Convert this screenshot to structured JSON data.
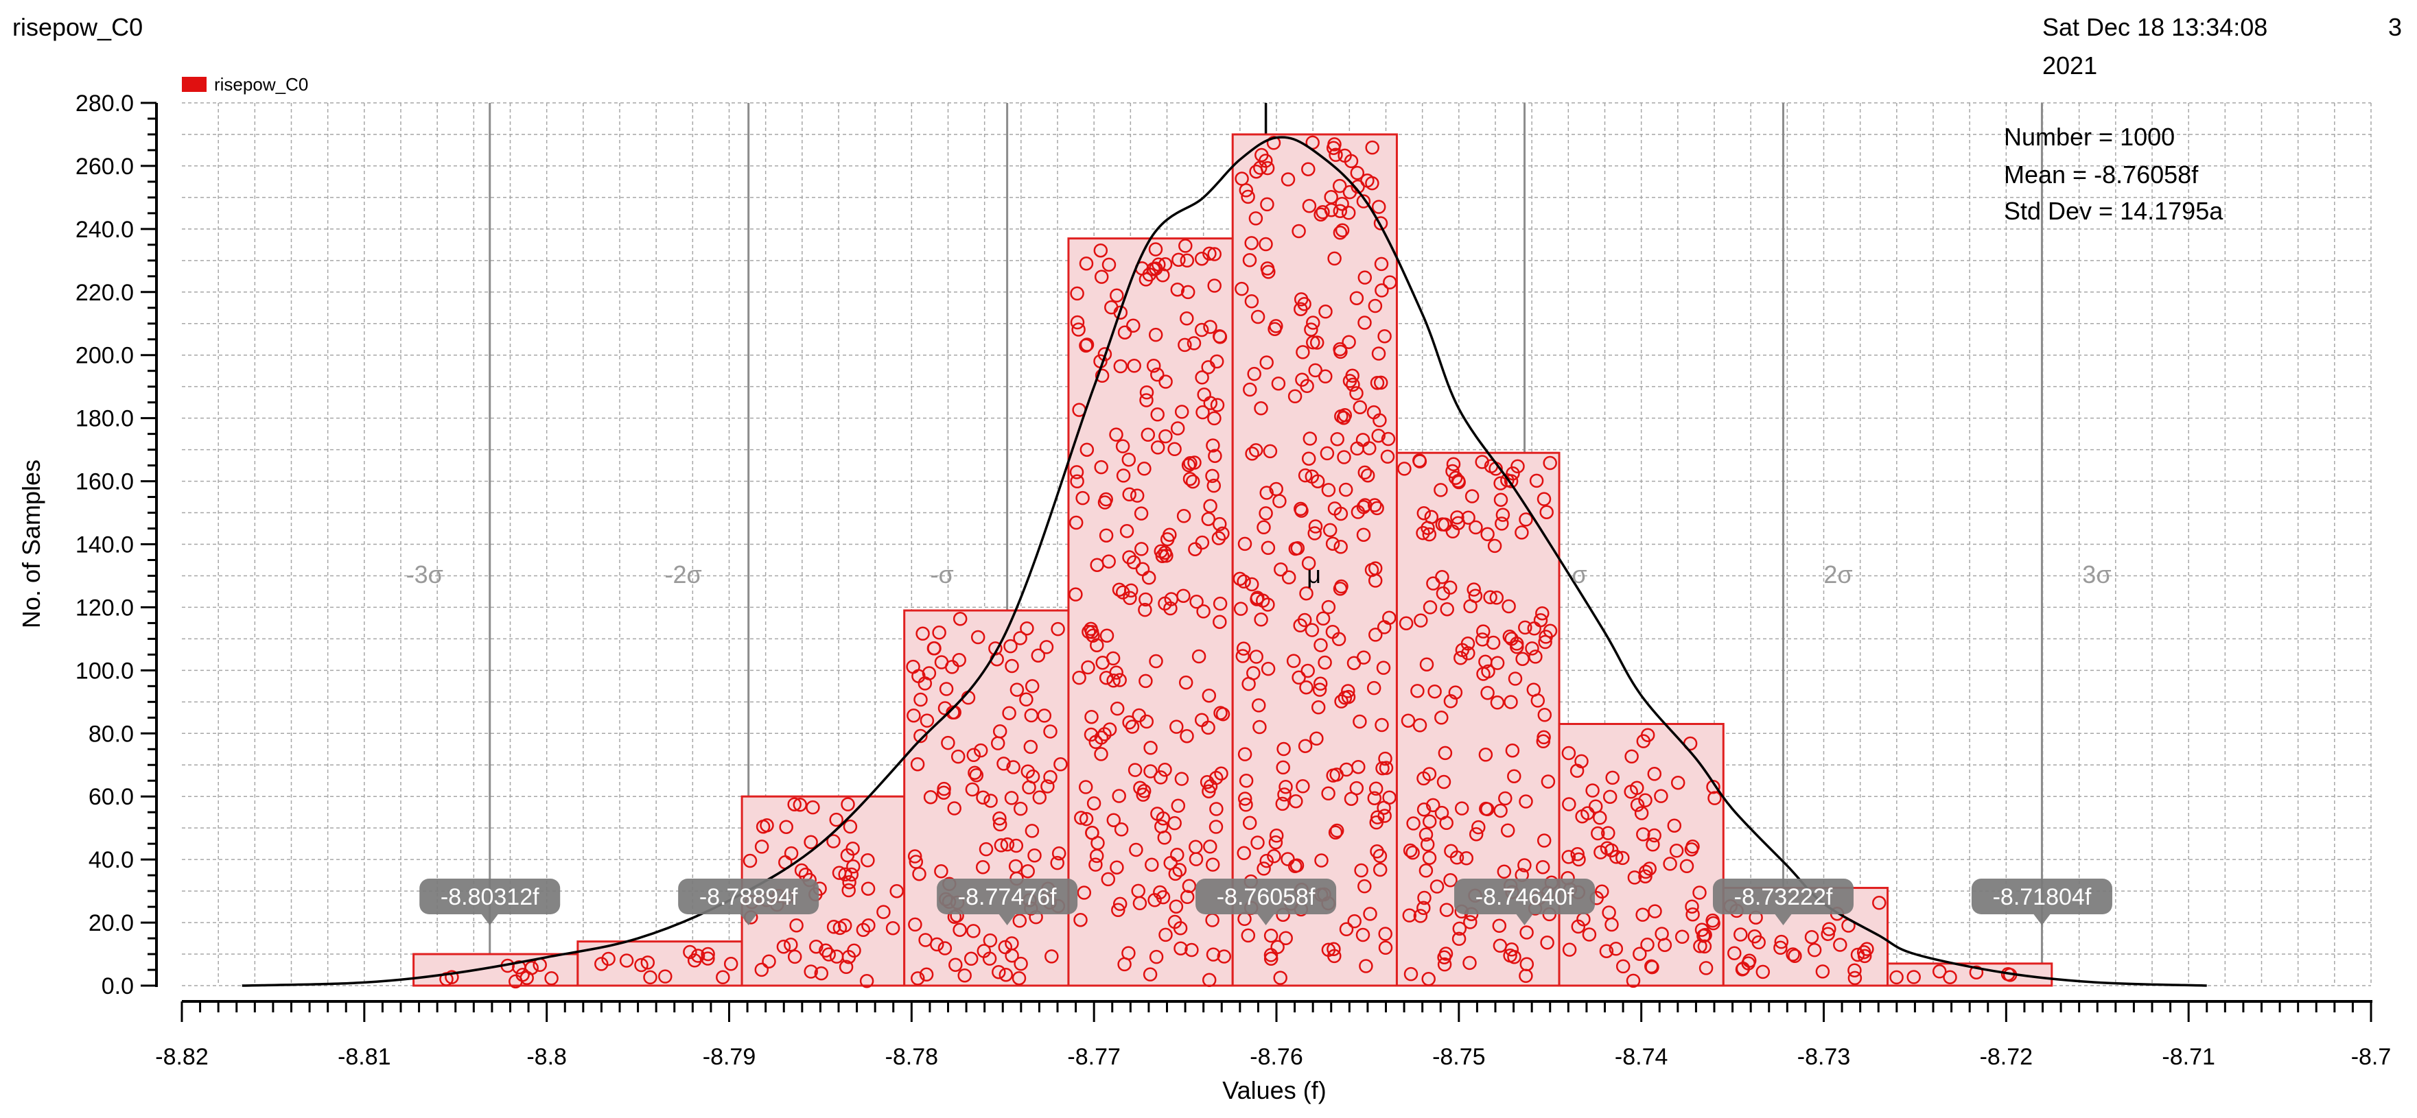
{
  "header": {
    "title": "risepow_C0",
    "date_line1": "Sat Dec 18 13:34:08",
    "date_line2": "2021",
    "page_number": "3"
  },
  "stats": {
    "number": "Number = 1000",
    "mean": "Mean = -8.76058f",
    "std_dev": "Std Dev = 14.1795a"
  },
  "colors": {
    "bar_fill": "#f7d7d9",
    "bar_edge": "#e02020",
    "marker": "#e01010",
    "curve": "#000000",
    "sigma_line": "#8c8c8c",
    "callout": "#7a7a7a",
    "grid": "#a6a6a6"
  },
  "chart_data": {
    "type": "bar",
    "title": "",
    "xlabel": "Values (f)",
    "ylabel": "No. of Samples",
    "legend": {
      "entries": [
        "risepow_C0"
      ],
      "placement": "top-left"
    },
    "xlim": [
      -8.82,
      -8.7
    ],
    "ylim": [
      0,
      280
    ],
    "grid": true,
    "x_ticks": [
      "-8.82",
      "-8.81",
      "-8.8",
      "-8.79",
      "-8.78",
      "-8.77",
      "-8.76",
      "-8.75",
      "-8.74",
      "-8.73",
      "-8.72",
      "-8.71",
      "-8.7"
    ],
    "y_ticks": [
      "0.0",
      "20.0",
      "40.0",
      "60.0",
      "80.0",
      "100.0",
      "120.0",
      "140.0",
      "160.0",
      "180.0",
      "200.0",
      "220.0",
      "240.0",
      "260.0",
      "280.0"
    ],
    "bins": [
      {
        "x0": -8.8073,
        "x1": -8.7983,
        "count": 10
      },
      {
        "x0": -8.7983,
        "x1": -8.7893,
        "count": 14
      },
      {
        "x0": -8.7893,
        "x1": -8.7804,
        "count": 60
      },
      {
        "x0": -8.7804,
        "x1": -8.7714,
        "count": 119
      },
      {
        "x0": -8.7714,
        "x1": -8.7624,
        "count": 237
      },
      {
        "x0": -8.7624,
        "x1": -8.7534,
        "count": 270
      },
      {
        "x0": -8.7534,
        "x1": -8.7445,
        "count": 169
      },
      {
        "x0": -8.7445,
        "x1": -8.7355,
        "count": 83
      },
      {
        "x0": -8.7355,
        "x1": -8.7265,
        "count": 31
      },
      {
        "x0": -8.7265,
        "x1": -8.7175,
        "count": 7
      }
    ],
    "density_curve": {
      "x": [
        -8.8167,
        -8.81,
        -8.805,
        -8.8,
        -8.795,
        -8.79,
        -8.785,
        -8.78,
        -8.775,
        -8.77,
        -8.767,
        -8.764,
        -8.762,
        -8.76,
        -8.758,
        -8.755,
        -8.752,
        -8.75,
        -8.747,
        -8.745,
        -8.742,
        -8.74,
        -8.737,
        -8.735,
        -8.732,
        -8.73,
        -8.727,
        -8.725,
        -8.72,
        -8.715,
        -8.709
      ],
      "y": [
        0,
        1,
        4,
        9,
        15,
        27,
        45,
        75,
        110,
        190,
        236,
        250,
        262,
        269,
        265,
        248,
        213,
        183,
        158,
        140,
        112,
        92,
        72,
        56,
        38,
        26,
        16,
        10,
        4,
        1,
        0
      ]
    },
    "sigma_lines": [
      {
        "label": "-3σ",
        "value": -8.80312,
        "callout": "-8.80312f"
      },
      {
        "label": "-2σ",
        "value": -8.78894,
        "callout": "-8.78894f"
      },
      {
        "label": "-σ",
        "value": -8.77476,
        "callout": "-8.77476f"
      },
      {
        "label": "μ",
        "value": -8.76058,
        "callout": "-8.76058f"
      },
      {
        "label": "σ",
        "value": -8.7464,
        "callout": "-8.74640f"
      },
      {
        "label": "2σ",
        "value": -8.73222,
        "callout": "-8.73222f"
      },
      {
        "label": "3σ",
        "value": -8.71804,
        "callout": "-8.71804f"
      }
    ]
  }
}
